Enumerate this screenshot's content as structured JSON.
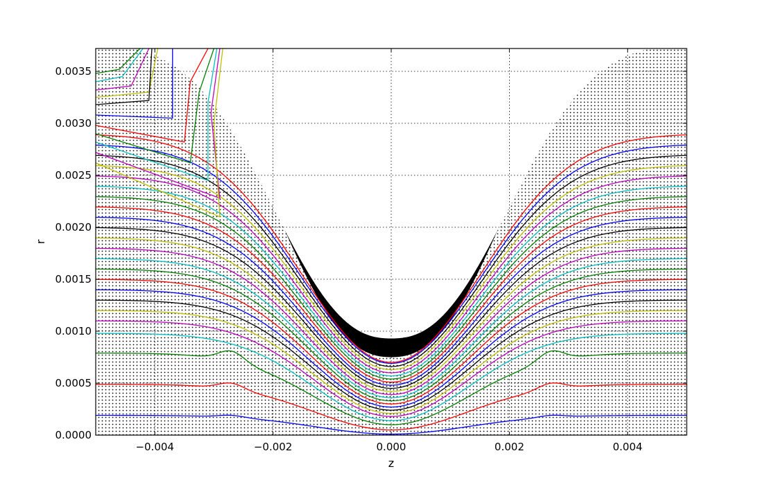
{
  "chart_data": {
    "type": "line",
    "title": "",
    "xlabel": "z",
    "ylabel": "r",
    "xlim": [
      -0.005,
      0.005
    ],
    "ylim": [
      0.0,
      0.00372
    ],
    "grid": true,
    "x_ticks": [
      -0.004,
      -0.002,
      0.0,
      0.002,
      0.004
    ],
    "x_tick_labels": [
      "−0.004",
      "−0.002",
      "0.000",
      "0.002",
      "0.004"
    ],
    "y_ticks": [
      0.0,
      0.0005,
      0.001,
      0.0015,
      0.002,
      0.0025,
      0.003,
      0.0035
    ],
    "y_tick_labels": [
      "0.0000",
      "0.0005",
      "0.0010",
      "0.0015",
      "0.0020",
      "0.0025",
      "0.0030",
      "0.0035"
    ],
    "color_cycle": [
      "#0000ff",
      "#ff0000",
      "#008000",
      "#00bfbf",
      "#bf00bf",
      "#bfbf00",
      "#000000"
    ],
    "edge_series": [
      {
        "name": "",
        "r_edge": 0.00019,
        "r_min": 1e-05,
        "bump": 2e-05,
        "left_x": -0.0046,
        "right_x": 0.0046
      },
      {
        "name": "",
        "r_edge": 0.00049,
        "r_min": 5e-05,
        "bump": 6e-05,
        "left_x": -0.0048,
        "right_x": 0.0048
      },
      {
        "name": "",
        "r_edge": 0.00079,
        "r_min": 0.0001,
        "bump": 0.0001,
        "left_x": -0.0048,
        "right_x": 0.0048
      },
      {
        "name": "",
        "r_edge": 0.00098,
        "r_min": 0.00014,
        "bump": 0.0,
        "left_x": -0.0048,
        "right_x": 0.0048
      },
      {
        "name": "",
        "r_edge": 0.0011,
        "r_min": 0.00018,
        "bump": 0.0,
        "left_x": -0.0048,
        "right_x": 0.0048
      },
      {
        "name": "",
        "r_edge": 0.0012,
        "r_min": 0.00021,
        "bump": 0.0,
        "left_x": -0.0048,
        "right_x": 0.0048
      },
      {
        "name": "",
        "r_edge": 0.0013,
        "r_min": 0.00024,
        "bump": 0.0,
        "left_x": -0.0048,
        "right_x": 0.0048
      },
      {
        "name": "",
        "r_edge": 0.0014,
        "r_min": 0.00027,
        "bump": 0.0,
        "left_x": -0.0048,
        "right_x": 0.0048
      },
      {
        "name": "",
        "r_edge": 0.0015,
        "r_min": 0.0003,
        "bump": 0.0,
        "left_x": -0.0048,
        "right_x": 0.0048
      },
      {
        "name": "",
        "r_edge": 0.0016,
        "r_min": 0.00033,
        "bump": 0.0,
        "left_x": -0.0048,
        "right_x": 0.0048
      },
      {
        "name": "",
        "r_edge": 0.0017,
        "r_min": 0.00036,
        "bump": 0.0,
        "left_x": -0.0048,
        "right_x": 0.0048
      },
      {
        "name": "",
        "r_edge": 0.0018,
        "r_min": 0.00039,
        "bump": 0.0,
        "left_x": -0.0048,
        "right_x": 0.0048
      },
      {
        "name": "",
        "r_edge": 0.0019,
        "r_min": 0.00042,
        "bump": 0.0,
        "left_x": -0.0048,
        "right_x": 0.0048
      },
      {
        "name": "",
        "r_edge": 0.002,
        "r_min": 0.00045,
        "bump": 0.0,
        "left_x": -0.0048,
        "right_x": 0.0048
      },
      {
        "name": "",
        "r_edge": 0.0021,
        "r_min": 0.00048,
        "bump": 0.0,
        "left_x": -0.0048,
        "right_x": 0.0048
      },
      {
        "name": "",
        "r_edge": 0.0022,
        "r_min": 0.00051,
        "bump": 0.0,
        "left_x": -0.0048,
        "right_x": 0.0048
      },
      {
        "name": "",
        "r_edge": 0.0023,
        "r_min": 0.00054,
        "bump": 0.0,
        "left_x": -0.0048,
        "right_x": 0.0048
      },
      {
        "name": "",
        "r_edge": 0.0024,
        "r_min": 0.00057,
        "bump": 0.0,
        "left_x": -0.0048,
        "right_x": 0.0048
      },
      {
        "name": "",
        "r_edge": 0.0025,
        "r_min": 0.0006,
        "bump": 0.0,
        "left_x": -0.0048,
        "right_x": 0.0048
      },
      {
        "name": "",
        "r_edge": 0.0026,
        "r_min": 0.00063,
        "bump": 0.0,
        "left_x": -0.0048,
        "right_x": 0.0048
      },
      {
        "name": "",
        "r_edge": 0.0027,
        "r_min": 0.00066,
        "bump": 0.0,
        "left_x": -0.0048,
        "right_x": 0.0048
      },
      {
        "name": "",
        "r_edge": 0.0028,
        "r_min": 0.00069,
        "bump": 0.0,
        "left_x": -0.0048,
        "right_x": 0.0048
      },
      {
        "name": "",
        "r_edge": 0.0029,
        "r_min": 0.0007,
        "bump": 0.0,
        "left_x": -0.0048,
        "right_x": 0.0048
      }
    ],
    "top_left_series": [
      {
        "name": "",
        "points": [
          [
            -0.005,
            0.00348
          ],
          [
            -0.0046,
            0.00352
          ],
          [
            -0.00425,
            0.00372
          ]
        ]
      },
      {
        "name": "",
        "points": [
          [
            -0.005,
            0.0034
          ],
          [
            -0.00455,
            0.00345
          ],
          [
            -0.0042,
            0.00372
          ]
        ]
      },
      {
        "name": "",
        "points": [
          [
            -0.005,
            0.00332
          ],
          [
            -0.0044,
            0.00336
          ],
          [
            -0.0041,
            0.00372
          ]
        ]
      },
      {
        "name": "",
        "points": [
          [
            -0.005,
            0.00325
          ],
          [
            -0.0041,
            0.0033
          ],
          [
            -0.00395,
            0.00372
          ]
        ]
      },
      {
        "name": "",
        "points": [
          [
            -0.005,
            0.00318
          ],
          [
            -0.0041,
            0.00322
          ],
          [
            -0.00405,
            0.00372
          ]
        ]
      },
      {
        "name": "",
        "points": [
          [
            -0.005,
            0.00308
          ],
          [
            -0.0037,
            0.00305
          ],
          [
            -0.0037,
            0.0035
          ],
          [
            -0.0037,
            0.00372
          ]
        ]
      },
      {
        "name": "",
        "points": [
          [
            -0.005,
            0.00298
          ],
          [
            -0.0035,
            0.00282
          ],
          [
            -0.0034,
            0.0034
          ],
          [
            -0.0031,
            0.00372
          ]
        ]
      },
      {
        "name": "",
        "points": [
          [
            -0.005,
            0.0029
          ],
          [
            -0.0034,
            0.00262
          ],
          [
            -0.00325,
            0.0033
          ],
          [
            -0.003,
            0.00372
          ]
        ]
      },
      {
        "name": "",
        "points": [
          [
            -0.005,
            0.00282
          ],
          [
            -0.0031,
            0.00245
          ],
          [
            -0.0031,
            0.0032
          ],
          [
            -0.00295,
            0.00372
          ]
        ]
      },
      {
        "name": "",
        "points": [
          [
            -0.005,
            0.00272
          ],
          [
            -0.0029,
            0.00228
          ],
          [
            -0.00305,
            0.0031
          ],
          [
            -0.0029,
            0.00372
          ]
        ]
      },
      {
        "name": "",
        "points": [
          [
            -0.005,
            0.00262
          ],
          [
            -0.0029,
            0.0021
          ],
          [
            -0.003,
            0.003
          ],
          [
            -0.00285,
            0.00372
          ]
        ]
      }
    ]
  }
}
